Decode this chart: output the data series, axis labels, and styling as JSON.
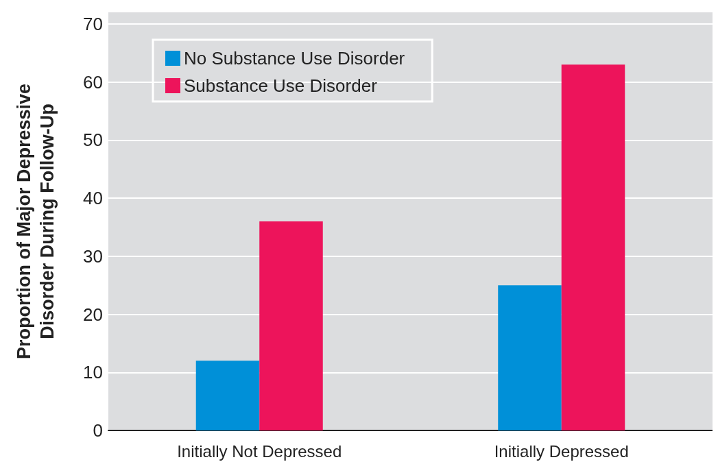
{
  "chart_data": {
    "type": "bar",
    "ylabel": "Proportion of Major Depressive\nDisorder During Follow-Up",
    "categories": [
      "Initially Not Depressed",
      "Initially Depressed"
    ],
    "series": [
      {
        "name": "No Substance Use Disorder",
        "color": "#0090d8",
        "values": [
          12,
          25
        ]
      },
      {
        "name": "Substance Use Disorder",
        "color": "#ed145b",
        "values": [
          36,
          63
        ]
      }
    ],
    "ylim": [
      0,
      72
    ],
    "yticks": [
      0,
      10,
      20,
      30,
      40,
      50,
      60,
      70
    ],
    "grid": "y",
    "legend": "top left"
  }
}
